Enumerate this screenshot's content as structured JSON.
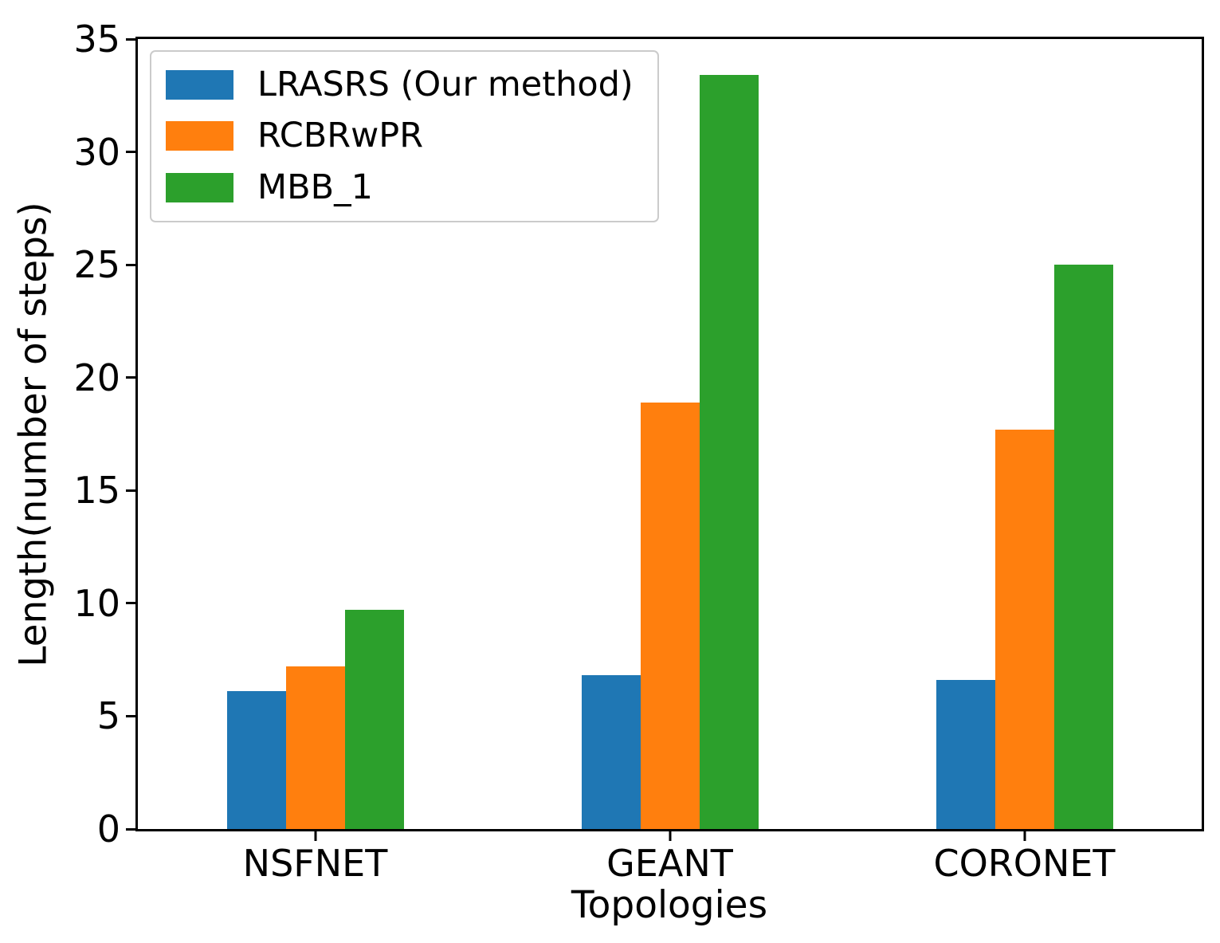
{
  "chart_data": {
    "type": "bar",
    "xlabel": "Topologies",
    "ylabel": "Length(number of steps)",
    "categories": [
      "NSFNET",
      "GEANT",
      "CORONET"
    ],
    "series": [
      {
        "name": "LRASRS (Our method)",
        "color": "#1f77b4",
        "values": [
          6.1,
          6.8,
          6.6
        ]
      },
      {
        "name": "RCBRwPR",
        "color": "#ff7f0e",
        "values": [
          7.2,
          18.9,
          17.7
        ]
      },
      {
        "name": "MBB_1",
        "color": "#2ca02c",
        "values": [
          9.7,
          33.4,
          25.0
        ]
      }
    ],
    "ylim": [
      0,
      35
    ],
    "yticks": [
      0,
      5,
      10,
      15,
      20,
      25,
      30,
      35
    ],
    "legend_position": "upper left",
    "grid": false,
    "axis_color": "#000000",
    "background_color": "#ffffff"
  }
}
